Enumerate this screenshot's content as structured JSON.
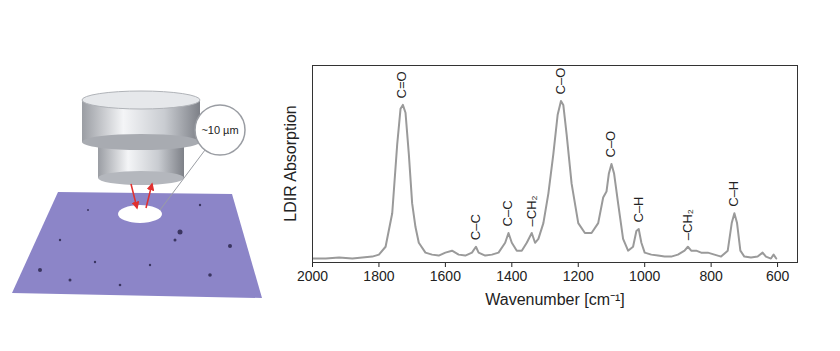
{
  "chart_data": {
    "type": "line",
    "xlabel": "Wavenumber [cm⁻¹]",
    "ylabel": "LDIR Absorption",
    "color": "#9a9a9a",
    "xlim": [
      2000,
      540
    ],
    "xticks": [
      2000,
      1800,
      1600,
      1400,
      1200,
      1000,
      800,
      600
    ],
    "ylim": [
      0,
      1
    ],
    "tick_labels": "x",
    "x": [
      2000,
      1960,
      1920,
      1880,
      1850,
      1820,
      1800,
      1780,
      1760,
      1745,
      1735,
      1728,
      1720,
      1710,
      1700,
      1690,
      1680,
      1660,
      1640,
      1620,
      1600,
      1580,
      1560,
      1540,
      1520,
      1508,
      1500,
      1480,
      1460,
      1440,
      1420,
      1410,
      1400,
      1385,
      1370,
      1355,
      1340,
      1330,
      1320,
      1305,
      1290,
      1275,
      1262,
      1252,
      1245,
      1235,
      1220,
      1200,
      1180,
      1160,
      1140,
      1125,
      1115,
      1108,
      1100,
      1092,
      1080,
      1065,
      1050,
      1035,
      1025,
      1018,
      1010,
      1000,
      980,
      960,
      940,
      920,
      900,
      880,
      870,
      860,
      845,
      830,
      810,
      790,
      770,
      750,
      738,
      730,
      722,
      712,
      700,
      680,
      660,
      645,
      635,
      620,
      612,
      604
    ],
    "values": [
      0.02,
      0.02,
      0.025,
      0.02,
      0.025,
      0.03,
      0.04,
      0.08,
      0.25,
      0.6,
      0.78,
      0.8,
      0.76,
      0.55,
      0.3,
      0.18,
      0.1,
      0.05,
      0.04,
      0.035,
      0.05,
      0.06,
      0.04,
      0.035,
      0.05,
      0.08,
      0.05,
      0.035,
      0.04,
      0.05,
      0.1,
      0.15,
      0.1,
      0.06,
      0.06,
      0.1,
      0.15,
      0.1,
      0.12,
      0.2,
      0.35,
      0.55,
      0.75,
      0.82,
      0.8,
      0.65,
      0.4,
      0.2,
      0.15,
      0.15,
      0.2,
      0.33,
      0.36,
      0.45,
      0.5,
      0.45,
      0.3,
      0.12,
      0.06,
      0.08,
      0.16,
      0.17,
      0.1,
      0.05,
      0.04,
      0.035,
      0.03,
      0.03,
      0.04,
      0.06,
      0.08,
      0.06,
      0.06,
      0.05,
      0.05,
      0.04,
      0.03,
      0.06,
      0.2,
      0.25,
      0.2,
      0.06,
      0.03,
      0.025,
      0.03,
      0.05,
      0.03,
      0.02,
      0.04,
      0.02
    ],
    "annotations": [
      {
        "text": "C=O",
        "x": 1730,
        "y": 0.8
      },
      {
        "text": "C–C",
        "x": 1508,
        "y": 0.08
      },
      {
        "text": "C–C",
        "x": 1410,
        "y": 0.15
      },
      {
        "text": "–CH₂",
        "x": 1340,
        "y": 0.15
      },
      {
        "text": "C–O",
        "x": 1252,
        "y": 0.82
      },
      {
        "text": "C–O",
        "x": 1100,
        "y": 0.5
      },
      {
        "text": "C–H",
        "x": 1018,
        "y": 0.17
      },
      {
        "text": "–CH₂",
        "x": 870,
        "y": 0.08
      },
      {
        "text": "C–H",
        "x": 730,
        "y": 0.25
      }
    ]
  },
  "illustration": {
    "spot_label": "~10 µm"
  }
}
